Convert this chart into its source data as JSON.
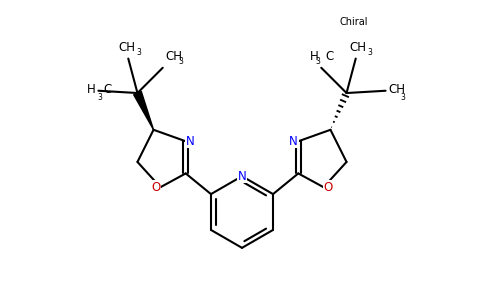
{
  "bg_color": "#ffffff",
  "figsize": [
    4.84,
    3.0
  ],
  "dpi": 100,
  "atom_colors": {
    "N": "#0000ff",
    "O": "#cc0000",
    "C": "#000000"
  },
  "bond_color": "#000000",
  "bond_lw": 1.5,
  "font_size_atom": 8.5,
  "chiral_label": "Chiral",
  "chiral_font_size": 7.0,
  "xlim": [
    0,
    10
  ],
  "ylim": [
    0,
    6.5
  ]
}
